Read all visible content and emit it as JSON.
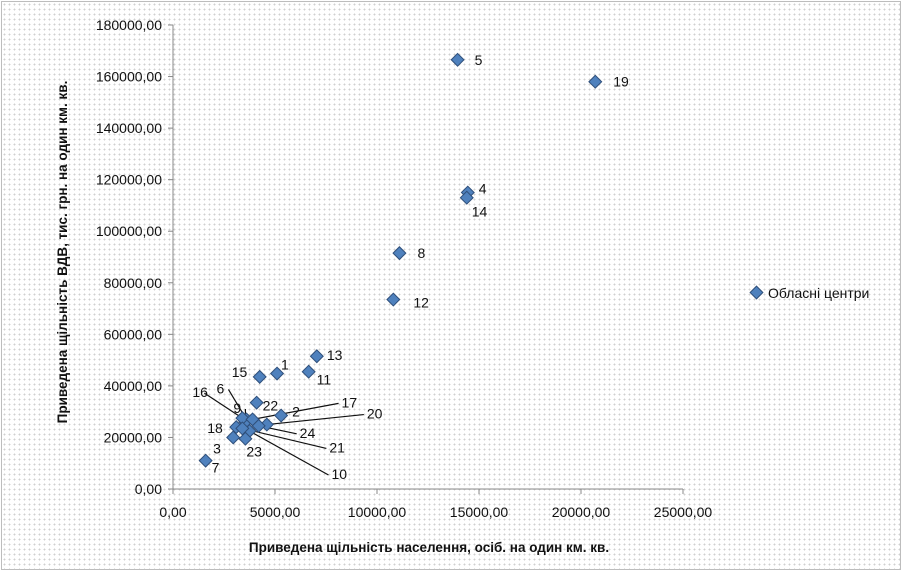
{
  "chart_data": {
    "type": "scatter",
    "xlabel": "Приведена щільність населення, осіб. на  один км. кв.",
    "ylabel": "Приведена щільність ВДВ, тис. грн. на один км. кв.",
    "xlim": [
      0,
      25000
    ],
    "ylim": [
      0,
      180000
    ],
    "x_ticks": [
      "0,00",
      "5000,00",
      "10000,00",
      "15000,00",
      "20000,00",
      "25000,00"
    ],
    "y_ticks": [
      "0,00",
      "20000,00",
      "40000,00",
      "60000,00",
      "80000,00",
      "100000,00",
      "120000,00",
      "140000,00",
      "160000,00",
      "180000,00"
    ],
    "grid": false,
    "legend_position": "right",
    "marker_color": "#4f81bd",
    "series": [
      {
        "name": "Обласні центри",
        "points": [
          {
            "label": "1",
            "x": 5100,
            "y": 44800
          },
          {
            "label": "2",
            "x": 5300,
            "y": 28500
          },
          {
            "label": "3",
            "x": 2950,
            "y": 20000
          },
          {
            "label": "4",
            "x": 14450,
            "y": 115000
          },
          {
            "label": "5",
            "x": 13950,
            "y": 166500
          },
          {
            "label": "6",
            "x": 3600,
            "y": 27000
          },
          {
            "label": "7",
            "x": 1600,
            "y": 11000
          },
          {
            "label": "8",
            "x": 11100,
            "y": 91500
          },
          {
            "label": "9",
            "x": 3550,
            "y": 26000
          },
          {
            "label": "10",
            "x": 3750,
            "y": 22500
          },
          {
            "label": "11",
            "x": 6650,
            "y": 45500
          },
          {
            "label": "12",
            "x": 10800,
            "y": 73500
          },
          {
            "label": "13",
            "x": 7050,
            "y": 51500
          },
          {
            "label": "14",
            "x": 14400,
            "y": 113000
          },
          {
            "label": "15",
            "x": 4250,
            "y": 43500
          },
          {
            "label": "16",
            "x": 3400,
            "y": 27500
          },
          {
            "label": "17",
            "x": 3900,
            "y": 27000
          },
          {
            "label": "18",
            "x": 3100,
            "y": 24000
          },
          {
            "label": "19",
            "x": 20700,
            "y": 158000
          },
          {
            "label": "20",
            "x": 4600,
            "y": 25000
          },
          {
            "label": "21",
            "x": 3400,
            "y": 23500
          },
          {
            "label": "22",
            "x": 4100,
            "y": 33500
          },
          {
            "label": "23",
            "x": 3550,
            "y": 19500
          },
          {
            "label": "24",
            "x": 4200,
            "y": 24500
          }
        ]
      }
    ]
  }
}
